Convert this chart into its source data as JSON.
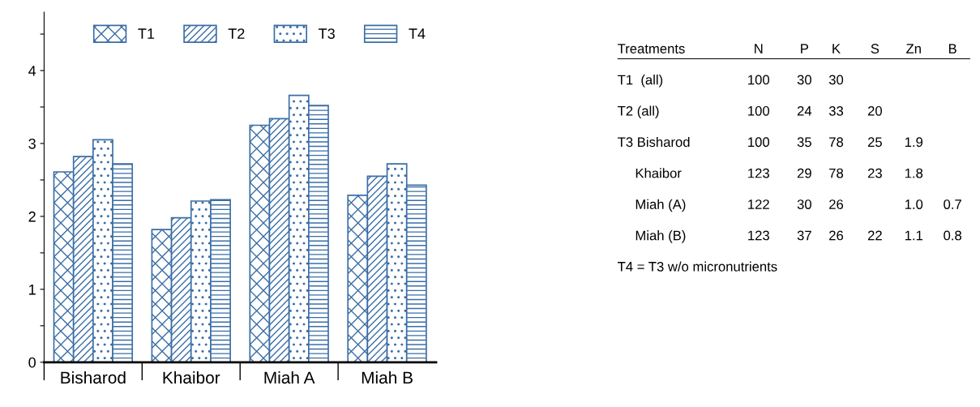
{
  "chart_data": [
    {
      "type": "bar",
      "categories": [
        "Bisharod",
        "Khaibor",
        "Miah A",
        "Miah B"
      ],
      "series": [
        {
          "name": "T1",
          "color": "#3a6ea5",
          "values": [
            2.61,
            1.82,
            3.25,
            2.29
          ]
        },
        {
          "name": "T2",
          "color": "#3a6ea5",
          "values": [
            2.82,
            1.98,
            3.34,
            2.55
          ]
        },
        {
          "name": "T3",
          "color": "#3a6ea5",
          "values": [
            3.05,
            2.21,
            3.66,
            2.72
          ]
        },
        {
          "name": "T4",
          "color": "#3a6ea5",
          "values": [
            2.72,
            2.23,
            3.52,
            2.43
          ]
        }
      ],
      "ylim": [
        0,
        4.8
      ],
      "yticks": [
        0,
        {
          "value": 0.5,
          "label": null
        },
        1,
        {
          "value": 1.5,
          "label": null
        },
        2,
        {
          "value": 2.5,
          "label": null
        },
        3,
        {
          "value": 3.5,
          "label": null
        },
        4,
        {
          "value": 4.5,
          "label": null
        }
      ],
      "legend": "top",
      "grid": false
    },
    {
      "type": "other",
      "categories": [
        "Treatments",
        "N",
        "P",
        "K",
        "S",
        "Zn",
        "B"
      ],
      "cell_labels": [
        [
          "T1  (all)",
          "100",
          "30",
          "30",
          null,
          null,
          null
        ],
        [
          "T2 (all)",
          "100",
          "24",
          "33",
          "20",
          null,
          null
        ],
        [
          "T3 Bisharod",
          "100",
          "35",
          "78",
          "25",
          "1.9",
          null
        ],
        [
          "Khaibor",
          "123",
          "29",
          "78",
          "23",
          "1.8",
          null
        ],
        [
          "Miah (A)",
          "122",
          "30",
          "26",
          null,
          "1.0",
          "0.7"
        ],
        [
          "Miah (B)",
          "123",
          "37",
          "26",
          "22",
          "1.1",
          "0.8"
        ]
      ],
      "annotations": [
        "T4 = T3 w/o micronutrients"
      ]
    }
  ]
}
